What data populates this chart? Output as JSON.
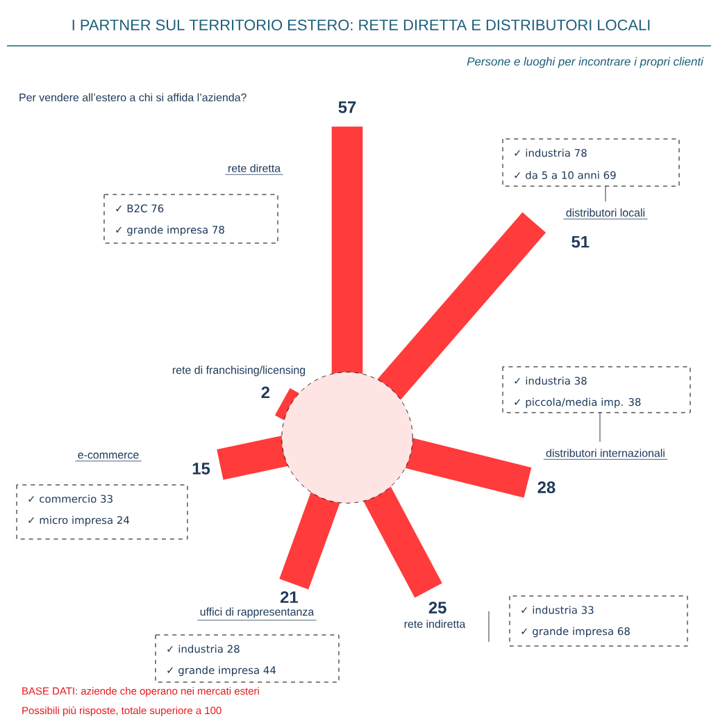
{
  "chart_data": {
    "type": "other",
    "title": "I PARTNER SUL TERRITORIO ESTERO: RETE DIRETTA E DISTRIBUTORI LOCALI",
    "subtitle": "Persone e luoghi per incontrare i propri clienti",
    "categories": [
      "rete diretta",
      "distributori locali",
      "distributori internazionali",
      "rete indiretta",
      "uffici di rappresentanza",
      "e-commerce",
      "rete di franchising/licensing"
    ],
    "values": [
      57,
      51,
      28,
      25,
      21,
      15,
      2
    ],
    "color": "#ff3b3b",
    "data_labels": true,
    "annotations": [
      "Per vendere all’estero a chi si affida l’azienda?",
      "✓ B2C 76",
      "✓ grande impresa 78",
      "✓ industria 78",
      "✓ da 5 a 10 anni 69",
      "✓ industria 38",
      "✓ piccola/media imp. 38",
      "✓ industria 33",
      "✓ grande impresa 68",
      "✓ industria 28",
      "✓ grande impresa 44",
      "✓ commercio 33",
      "✓ micro impresa 24",
      "BASE DATI: aziende che operano nei  mercati esteri",
      "Possibili più risposte, totale superiore a 100"
    ]
  }
}
